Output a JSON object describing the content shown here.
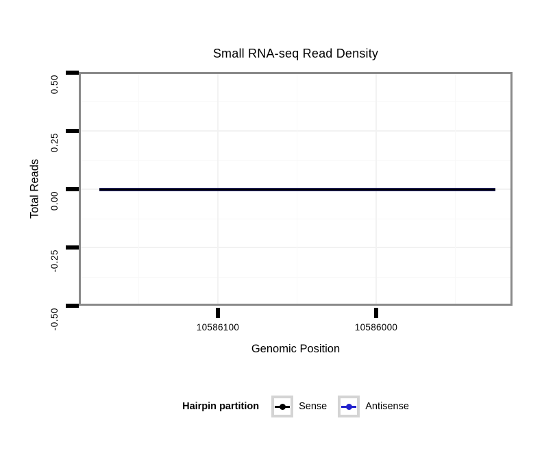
{
  "title": "Small RNA-seq Read Density",
  "axes": {
    "y": {
      "label": "Total Reads",
      "ticks": [
        "0.50",
        "0.25",
        "0.00",
        "-0.25",
        "-0.50"
      ]
    },
    "x": {
      "label": "Genomic Position",
      "ticks": [
        "10586100",
        "10586000"
      ]
    }
  },
  "legend": {
    "title": "Hairpin partition",
    "items": [
      {
        "label": "Sense",
        "color": "#000000"
      },
      {
        "label": "Antisense",
        "color": "#2222cc"
      }
    ]
  },
  "colors": {
    "panel_border": "#8a8a8a",
    "gridline_major": "#f2f2f2",
    "gridline_minor": "#f8f8f8",
    "sense_line": "#000000",
    "antisense_line": "#2222cc",
    "legend_key_border": "#d4d4d4",
    "background": "#ffffff"
  },
  "chart_data": {
    "type": "line",
    "title": "Small RNA-seq Read Density",
    "xlabel": "Genomic Position",
    "ylabel": "Total Reads",
    "x_axis_reversed": true,
    "x_range": [
      10586175,
      10585925
    ],
    "x_ticks": [
      10586100,
      10586000
    ],
    "y_ticks": [
      0.5,
      0.25,
      0.0,
      -0.25,
      -0.5
    ],
    "ylim": [
      -0.5,
      0.5
    ],
    "grid": true,
    "legend_title": "Hairpin partition",
    "legend_position": "bottom",
    "series": [
      {
        "name": "Sense",
        "color": "#000000",
        "x": [
          10586175,
          10585925
        ],
        "y": [
          0.0,
          0.0
        ],
        "description": "constant zero reads across the displayed genomic window"
      },
      {
        "name": "Antisense",
        "color": "#2222cc",
        "x": [
          10586175,
          10585925
        ],
        "y": [
          0.0,
          0.0
        ],
        "description": "constant zero reads across the displayed genomic window"
      }
    ]
  }
}
